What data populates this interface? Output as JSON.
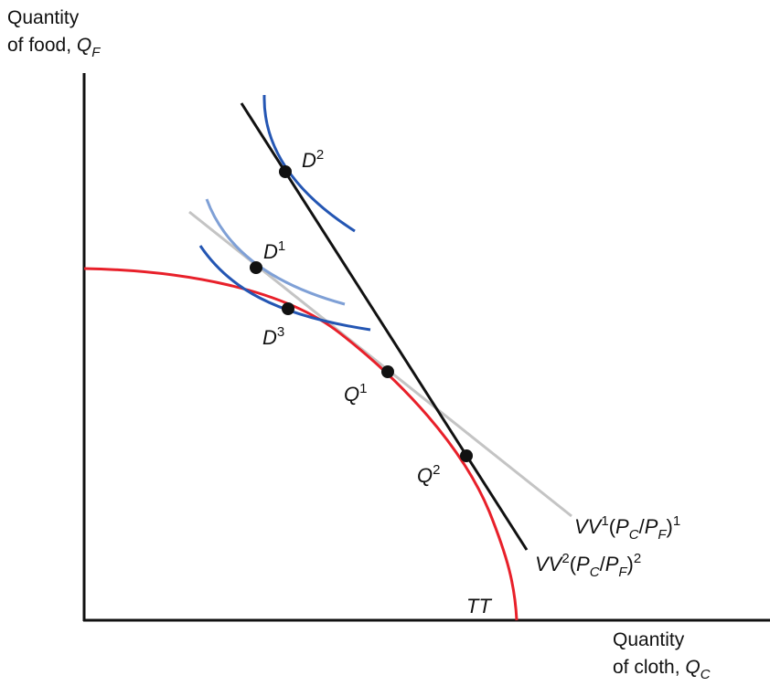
{
  "y_axis": {
    "line1": "Quantity",
    "line2_prefix": "of food, ",
    "var": "Q",
    "sub": "F"
  },
  "x_axis": {
    "line1": "Quantity",
    "line2_prefix": "of cloth, ",
    "var": "Q",
    "sub": "C"
  },
  "points": {
    "d2": {
      "base": "D",
      "sup": "2"
    },
    "d1": {
      "base": "D",
      "sup": "1"
    },
    "d3": {
      "base": "D",
      "sup": "3"
    },
    "q1": {
      "base": "Q",
      "sup": "1"
    },
    "q2": {
      "base": "Q",
      "sup": "2"
    }
  },
  "lines": {
    "vv1": {
      "base": "VV",
      "sup": "1",
      "open": "(",
      "p1": "P",
      "s1": "C",
      "slash": "/",
      "p2": "P",
      "s2": "F",
      "close": ")",
      "exp": "1"
    },
    "vv2": {
      "base": "VV",
      "sup": "2",
      "open": "(",
      "p1": "P",
      "s1": "C",
      "slash": "/",
      "p2": "P",
      "s2": "F",
      "close": ")",
      "exp": "2"
    }
  },
  "curve_label": "TT",
  "colors": {
    "axis": "#111111",
    "tt_curve": "#e8202a",
    "vv1_line": "#c4c4c4",
    "vv2_line": "#111111",
    "indiff_dark": "#2456b3",
    "indiff_light": "#7fa0d6",
    "dot": "#111111"
  }
}
